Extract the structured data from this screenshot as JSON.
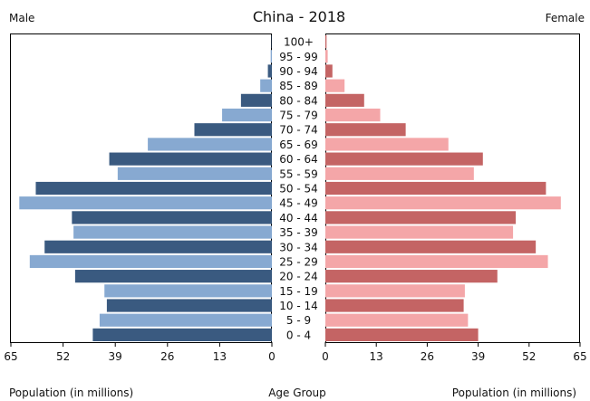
{
  "chart_data": {
    "type": "bar",
    "title": "China - 2018",
    "left_label": "Male",
    "right_label": "Female",
    "xlabel_left": "Population (in millions)",
    "xlabel_center": "Age Group",
    "xlabel_right": "Population (in millions)",
    "xlim": [
      0,
      65
    ],
    "x_ticks": [
      "65",
      "52",
      "39",
      "26",
      "13",
      "0"
    ],
    "x_ticks_right": [
      "0",
      "13",
      "26",
      "39",
      "52",
      "65"
    ],
    "categories": [
      "100+",
      "95 - 99",
      "90 - 94",
      "85 - 89",
      "80 - 84",
      "75 - 79",
      "70 - 74",
      "65 - 69",
      "60 - 64",
      "55 - 59",
      "50 - 54",
      "45 - 49",
      "40 - 44",
      "35 - 39",
      "30 - 34",
      "25 - 29",
      "20 - 24",
      "15 - 19",
      "10 - 14",
      "5 - 9",
      "0 - 4"
    ],
    "series": [
      {
        "name": "Male",
        "values": [
          0.1,
          0.3,
          1.0,
          2.9,
          7.7,
          12.4,
          19.3,
          30.9,
          40.5,
          38.4,
          58.8,
          62.9,
          49.8,
          49.4,
          56.6,
          60.3,
          49.0,
          41.7,
          41.1,
          42.9,
          44.6
        ],
        "colors": [
          "#3a5a80",
          "#87a9d1"
        ]
      },
      {
        "name": "Female",
        "values": [
          0.3,
          0.6,
          1.8,
          4.9,
          9.9,
          14.0,
          20.5,
          31.4,
          40.2,
          37.9,
          56.3,
          60.1,
          48.6,
          47.9,
          53.7,
          56.8,
          43.9,
          35.6,
          35.3,
          36.4,
          39.0
        ],
        "colors": [
          "#c46464",
          "#f4a6a8"
        ]
      }
    ],
    "grid": false
  }
}
